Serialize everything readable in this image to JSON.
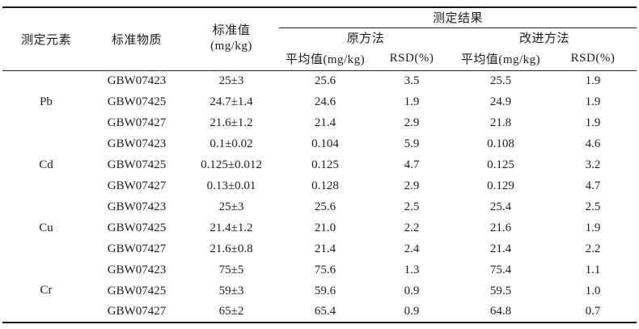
{
  "colors": {
    "background": "#ffffff",
    "text": "#1d1d1d",
    "rule": "#161616"
  },
  "table": {
    "headers": {
      "element": "测定元素",
      "material": "标准物质",
      "standard_value_line1": "标准值",
      "standard_value_line2": "(mg/kg)",
      "results_group": "测定结果",
      "method_original": "原方法",
      "method_improved": "改进方法",
      "mean": "平均值(mg/kg)",
      "rsd": "RSD(%)"
    },
    "groups": [
      {
        "element": "Pb",
        "rows": [
          [
            "GBW07423",
            "25±3",
            "25.6",
            "3.5",
            "25.5",
            "1.9"
          ],
          [
            "GBW07425",
            "24.7±1.4",
            "24.6",
            "1.9",
            "24.9",
            "1.9"
          ],
          [
            "GBW07427",
            "21.6±1.2",
            "21.4",
            "2.9",
            "21.8",
            "1.9"
          ]
        ]
      },
      {
        "element": "Cd",
        "rows": [
          [
            "GBW07423",
            "0.1±0.02",
            "0.104",
            "5.9",
            "0.108",
            "4.6"
          ],
          [
            "GBW07425",
            "0.125±0.012",
            "0.125",
            "4.7",
            "0.125",
            "3.2"
          ],
          [
            "GBW07427",
            "0.13±0.01",
            "0.128",
            "2.9",
            "0.129",
            "4.7"
          ]
        ]
      },
      {
        "element": "Cu",
        "rows": [
          [
            "GBW07423",
            "25±3",
            "25.6",
            "2.5",
            "25.4",
            "2.5"
          ],
          [
            "GBW07425",
            "21.4±1.2",
            "21.0",
            "2.2",
            "21.6",
            "1.9"
          ],
          [
            "GBW07427",
            "21.6±0.8",
            "21.4",
            "2.4",
            "21.4",
            "2.2"
          ]
        ]
      },
      {
        "element": "Cr",
        "rows": [
          [
            "GBW07423",
            "75±5",
            "75.6",
            "1.3",
            "75.4",
            "1.1"
          ],
          [
            "GBW07425",
            "59±3",
            "59.6",
            "0.9",
            "59.5",
            "1.0"
          ],
          [
            "GBW07427",
            "65±2",
            "65.4",
            "0.9",
            "64.8",
            "0.7"
          ]
        ]
      }
    ]
  }
}
